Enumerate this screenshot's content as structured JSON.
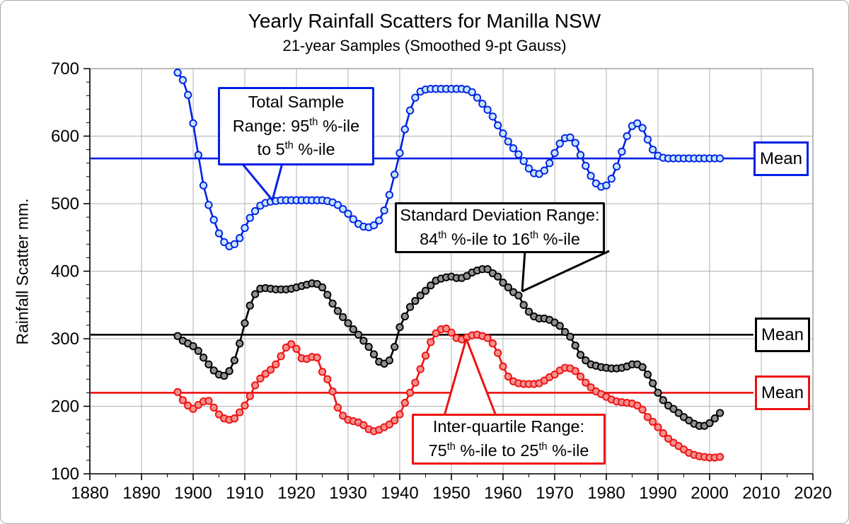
{
  "figure": {
    "title": "Yearly Rainfall Scatters for Manilla NSW",
    "subtitle": "21-year Samples (Smoothed 9-pt Gauss)",
    "y_axis_title": "Rainfall Scatter mm."
  },
  "chart_data": {
    "type": "line",
    "title": "Yearly Rainfall Scatters for Manilla NSW",
    "subtitle": "21-year Samples (Smoothed 9-pt Gauss)",
    "xlabel": "",
    "ylabel": "Rainfall Scatter mm.",
    "xlim": [
      1880,
      2020
    ],
    "ylim": [
      100,
      700
    ],
    "x_tick_step": 10,
    "y_tick_step": 100,
    "x_minor_step": 5,
    "y_minor_step": 20,
    "grid": true,
    "legend_position": "none",
    "x": [
      1897,
      1898,
      1899,
      1900,
      1901,
      1902,
      1903,
      1904,
      1905,
      1906,
      1907,
      1908,
      1909,
      1910,
      1911,
      1912,
      1913,
      1914,
      1915,
      1916,
      1917,
      1918,
      1919,
      1920,
      1921,
      1922,
      1923,
      1924,
      1925,
      1926,
      1927,
      1928,
      1929,
      1930,
      1931,
      1932,
      1933,
      1934,
      1935,
      1936,
      1937,
      1938,
      1939,
      1940,
      1941,
      1942,
      1943,
      1944,
      1945,
      1946,
      1947,
      1948,
      1949,
      1950,
      1951,
      1952,
      1953,
      1954,
      1955,
      1956,
      1957,
      1958,
      1959,
      1960,
      1961,
      1962,
      1963,
      1964,
      1965,
      1966,
      1967,
      1968,
      1969,
      1970,
      1971,
      1972,
      1973,
      1974,
      1975,
      1976,
      1977,
      1978,
      1979,
      1980,
      1981,
      1982,
      1983,
      1984,
      1985,
      1986,
      1987,
      1988,
      1989,
      1990,
      1991,
      1992,
      1993,
      1994,
      1995,
      1996,
      1997,
      1998,
      1999,
      2000,
      2001,
      2002
    ],
    "series": [
      {
        "name": "Total Sample Range: 95th %-ile to 5th %-ile",
        "color": "#0020e6",
        "marker_fill": "#c5e6fa",
        "values": [
          694,
          683,
          661,
          619,
          572,
          527,
          498,
          476,
          456,
          443,
          437,
          440,
          449,
          464,
          479,
          489,
          497,
          501,
          503,
          504,
          505,
          505,
          505,
          505,
          505,
          505,
          505,
          505,
          505,
          504,
          502,
          498,
          492,
          485,
          477,
          470,
          466,
          465,
          468,
          475,
          490,
          513,
          543,
          575,
          610,
          638,
          657,
          666,
          669,
          670,
          670,
          670,
          670,
          670,
          670,
          670,
          669,
          665,
          657,
          648,
          639,
          629,
          616,
          604,
          592,
          582,
          573,
          563,
          552,
          545,
          544,
          549,
          560,
          575,
          589,
          597,
          598,
          590,
          572,
          556,
          541,
          530,
          525,
          527,
          537,
          555,
          577,
          600,
          615,
          619,
          612,
          595,
          580,
          571,
          568,
          567,
          567,
          567,
          567,
          567,
          567,
          567,
          567,
          567,
          567,
          567
        ]
      },
      {
        "name": "Standard Deviation Range: 84th %-ile to 16th %-ile",
        "color": "#000000",
        "marker_fill": "#909090",
        "values": [
          304,
          297,
          293,
          289,
          282,
          272,
          262,
          253,
          247,
          245,
          252,
          268,
          293,
          323,
          349,
          366,
          374,
          375,
          374,
          373,
          373,
          373,
          374,
          376,
          378,
          380,
          382,
          381,
          376,
          365,
          352,
          341,
          332,
          323,
          314,
          306,
          297,
          288,
          277,
          266,
          263,
          268,
          288,
          317,
          333,
          347,
          356,
          364,
          371,
          379,
          386,
          389,
          391,
          392,
          390,
          390,
          393,
          398,
          401,
          403,
          403,
          397,
          392,
          383,
          376,
          369,
          364,
          350,
          340,
          333,
          330,
          330,
          328,
          324,
          319,
          310,
          303,
          290,
          276,
          268,
          262,
          260,
          258,
          257,
          256,
          256,
          257,
          259,
          262,
          262,
          258,
          247,
          234,
          220,
          209,
          201,
          196,
          190,
          184,
          179,
          174,
          171,
          171,
          175,
          182,
          190
        ]
      },
      {
        "name": "Inter-quartile Range: 75th %-ile to 25th %-ile",
        "color": "#ee1111",
        "marker_fill": "#f4918e",
        "values": [
          221,
          209,
          201,
          196,
          202,
          207,
          208,
          198,
          188,
          182,
          180,
          182,
          191,
          201,
          215,
          231,
          241,
          248,
          254,
          262,
          274,
          287,
          292,
          285,
          271,
          270,
          273,
          272,
          251,
          240,
          222,
          198,
          186,
          180,
          178,
          176,
          172,
          166,
          163,
          165,
          169,
          173,
          179,
          188,
          205,
          220,
          235,
          255,
          275,
          295,
          308,
          314,
          315,
          309,
          301,
          299,
          302,
          305,
          306,
          304,
          301,
          293,
          279,
          259,
          244,
          237,
          234,
          233,
          233,
          233,
          234,
          238,
          243,
          247,
          253,
          257,
          256,
          252,
          244,
          235,
          228,
          222,
          218,
          214,
          210,
          207,
          206,
          205,
          204,
          201,
          195,
          184,
          177,
          169,
          160,
          152,
          146,
          141,
          136,
          131,
          128,
          126,
          125,
          124,
          124,
          125
        ]
      }
    ],
    "mean_lines": [
      {
        "label": "Mean",
        "value": 567,
        "color": "#0020e6"
      },
      {
        "label": "Mean",
        "value": 306,
        "color": "#000000"
      },
      {
        "label": "Mean",
        "value": 220,
        "color": "#ee1111"
      }
    ]
  },
  "annotations": [
    {
      "id": "total-sample-range",
      "color": "#0020e6",
      "lines": [
        [
          {
            "t": "Total Sample"
          }
        ],
        [
          {
            "t": "Range: 95"
          },
          {
            "s": "th"
          },
          {
            "t": " %-ile"
          }
        ],
        [
          {
            "t": "to 5"
          },
          {
            "s": "th"
          },
          {
            "t": " %-ile"
          }
        ]
      ]
    },
    {
      "id": "standard-deviation-range",
      "color": "#000000",
      "lines": [
        [
          {
            "t": "Standard Deviation Range:"
          }
        ],
        [
          {
            "t": "84"
          },
          {
            "s": "th"
          },
          {
            "t": " %-ile to 16"
          },
          {
            "s": "th"
          },
          {
            "t": " %-ile"
          }
        ]
      ]
    },
    {
      "id": "inter-quartile-range",
      "color": "#ee1111",
      "lines": [
        [
          {
            "t": "Inter-quartile Range:"
          }
        ],
        [
          {
            "t": "75"
          },
          {
            "s": "th"
          },
          {
            "t": " %-ile to 25"
          },
          {
            "s": "th"
          },
          {
            "t": " %-ile"
          }
        ]
      ]
    }
  ]
}
